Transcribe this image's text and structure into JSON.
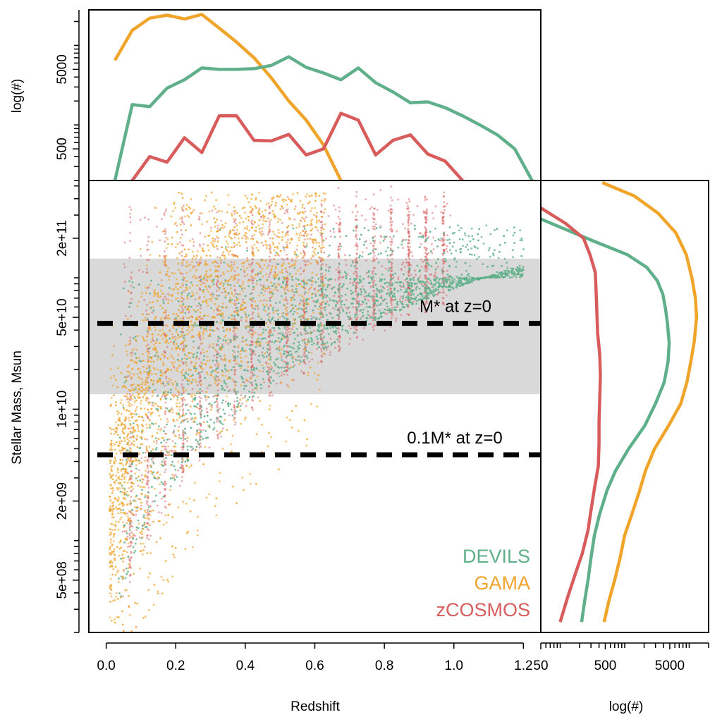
{
  "chart_data": [
    {
      "panel": "main",
      "type": "scatter",
      "xlabel": "Redshift",
      "ylabel": "Stellar Mass, Msun",
      "xlim": [
        -0.05,
        1.25
      ],
      "ylim": [
        200000000.0,
        550000000000.0
      ],
      "y_scale": "log",
      "x_ticks": [
        0.0,
        0.2,
        0.4,
        0.6,
        0.8,
        1.0,
        1.2
      ],
      "x_tick_labels": [
        "0.0",
        "0.2",
        "0.4",
        "0.6",
        "0.8",
        "1.0",
        "1.2"
      ],
      "y_ticks": [
        500000000.0,
        2000000000.0,
        10000000000.0,
        50000000000.0,
        200000000000.0
      ],
      "y_tick_labels": [
        "5e+08",
        "2e+09",
        "1e+10",
        "5e+10",
        "2e+11"
      ],
      "grey_band": [
        13000000000.0,
        140000000000.0
      ],
      "reference_lines": [
        {
          "label": "M* at z=0",
          "y": 45000000000.0
        },
        {
          "label": "0.1M* at z=0",
          "y": 4500000000.0
        }
      ],
      "legend_position": "bottom-right",
      "series": [
        {
          "name": "DEVILS",
          "color": "#5fb08a",
          "z_max": 1.2
        },
        {
          "name": "GAMA",
          "color": "#f0a42a",
          "z_max": 0.6
        },
        {
          "name": "zCOSMOS",
          "color": "#d85c5c",
          "z_max": 1.0
        }
      ]
    },
    {
      "panel": "top",
      "type": "line",
      "ylabel": "log(#)",
      "y_scale": "log",
      "ylim": [
        200,
        28000
      ],
      "y_ticks": [
        500,
        5000
      ],
      "y_tick_labels": [
        "500",
        "5000"
      ],
      "series": [
        {
          "name": "GAMA",
          "color": "#f0a42a",
          "x": [
            0.025,
            0.075,
            0.125,
            0.175,
            0.225,
            0.275,
            0.325,
            0.375,
            0.425,
            0.475,
            0.525,
            0.575,
            0.625,
            0.675
          ],
          "y": [
            6500,
            15500,
            22000,
            24000,
            21500,
            24500,
            16500,
            11000,
            7000,
            3900,
            2000,
            1150,
            560,
            200
          ]
        },
        {
          "name": "DEVILS",
          "color": "#5fb08a",
          "x": [
            0.025,
            0.075,
            0.125,
            0.175,
            0.225,
            0.275,
            0.325,
            0.375,
            0.425,
            0.475,
            0.525,
            0.575,
            0.625,
            0.675,
            0.725,
            0.775,
            0.825,
            0.875,
            0.925,
            0.975,
            1.025,
            1.075,
            1.125,
            1.175,
            1.225
          ],
          "y": [
            200,
            1800,
            1700,
            2900,
            3700,
            5200,
            5000,
            5000,
            5100,
            5600,
            7200,
            5300,
            4500,
            3700,
            5200,
            3400,
            2600,
            1900,
            1950,
            1650,
            1300,
            1000,
            750,
            500,
            200
          ]
        },
        {
          "name": "zCOSMOS",
          "color": "#d85c5c",
          "x": [
            0.075,
            0.125,
            0.175,
            0.225,
            0.275,
            0.325,
            0.375,
            0.425,
            0.475,
            0.525,
            0.575,
            0.625,
            0.675,
            0.725,
            0.775,
            0.825,
            0.875,
            0.925,
            0.975,
            1.025
          ],
          "y": [
            200,
            400,
            340,
            690,
            450,
            1300,
            1300,
            640,
            630,
            760,
            420,
            500,
            1400,
            1150,
            420,
            640,
            750,
            430,
            350,
            200
          ]
        }
      ]
    },
    {
      "panel": "right",
      "type": "line",
      "xlabel": "log(#)",
      "x_scale": "log",
      "xlim": [
        50,
        20000
      ],
      "x_ticks": [
        50,
        500,
        5000
      ],
      "x_tick_labels": [
        "50",
        "500",
        "5000"
      ],
      "series": [
        {
          "name": "GAMA",
          "color": "#f0a42a",
          "mass": [
            530000000000.0,
            420000000000.0,
            310000000000.0,
            220000000000.0,
            150000000000.0,
            100000000000.0,
            70000000000.0,
            50000000000.0,
            33000000000.0,
            23000000000.0,
            16000000000.0,
            11000000000.0,
            7500000000.0,
            5000000000.0,
            3400000000.0,
            2400000000.0,
            1600000000.0,
            1100000000.0,
            740000000.0,
            500000000.0,
            350000000.0,
            240000000.0
          ],
          "counts": [
            450,
            1400,
            3300,
            6200,
            9000,
            11000,
            12500,
            13000,
            12000,
            10600,
            9200,
            7400,
            4800,
            2900,
            2100,
            1700,
            1300,
            1000,
            850,
            700,
            570,
            480
          ]
        },
        {
          "name": "DEVILS",
          "color": "#5fb08a",
          "mass": [
            280000000000.0,
            230000000000.0,
            190000000000.0,
            150000000000.0,
            120000000000.0,
            95000000000.0,
            75000000000.0,
            58000000000.0,
            45000000000.0,
            32000000000.0,
            23000000000.0,
            16000000000.0,
            11000000000.0,
            7500000000.0,
            5000000000.0,
            3400000000.0,
            2400000000.0,
            1600000000.0,
            1100000000.0,
            740000000.0,
            500000000.0,
            350000000.0,
            240000000.0
          ],
          "counts": [
            50,
            130,
            330,
            1100,
            2200,
            3200,
            3900,
            4300,
            4600,
            4900,
            4700,
            4100,
            3000,
            2050,
            1150,
            720,
            530,
            410,
            340,
            300,
            270,
            240,
            215
          ]
        },
        {
          "name": "zCOSMOS",
          "color": "#d85c5c",
          "mass": [
            340000000000.0,
            260000000000.0,
            200000000000.0,
            150000000000.0,
            110000000000.0,
            80000000000.0,
            55000000000.0,
            38000000000.0,
            26000000000.0,
            18000000000.0,
            12000000000.0,
            8000000000.0,
            5500000000.0,
            3700000000.0,
            2500000000.0,
            1700000000.0,
            1200000000.0,
            800000000.0,
            550000000.0,
            370000000.0,
            240000000.0
          ],
          "counts": [
            50,
            120,
            230,
            290,
            350,
            360,
            370,
            380,
            410,
            420,
            410,
            400,
            400,
            390,
            340,
            300,
            270,
            220,
            170,
            130,
            100
          ]
        }
      ]
    }
  ]
}
